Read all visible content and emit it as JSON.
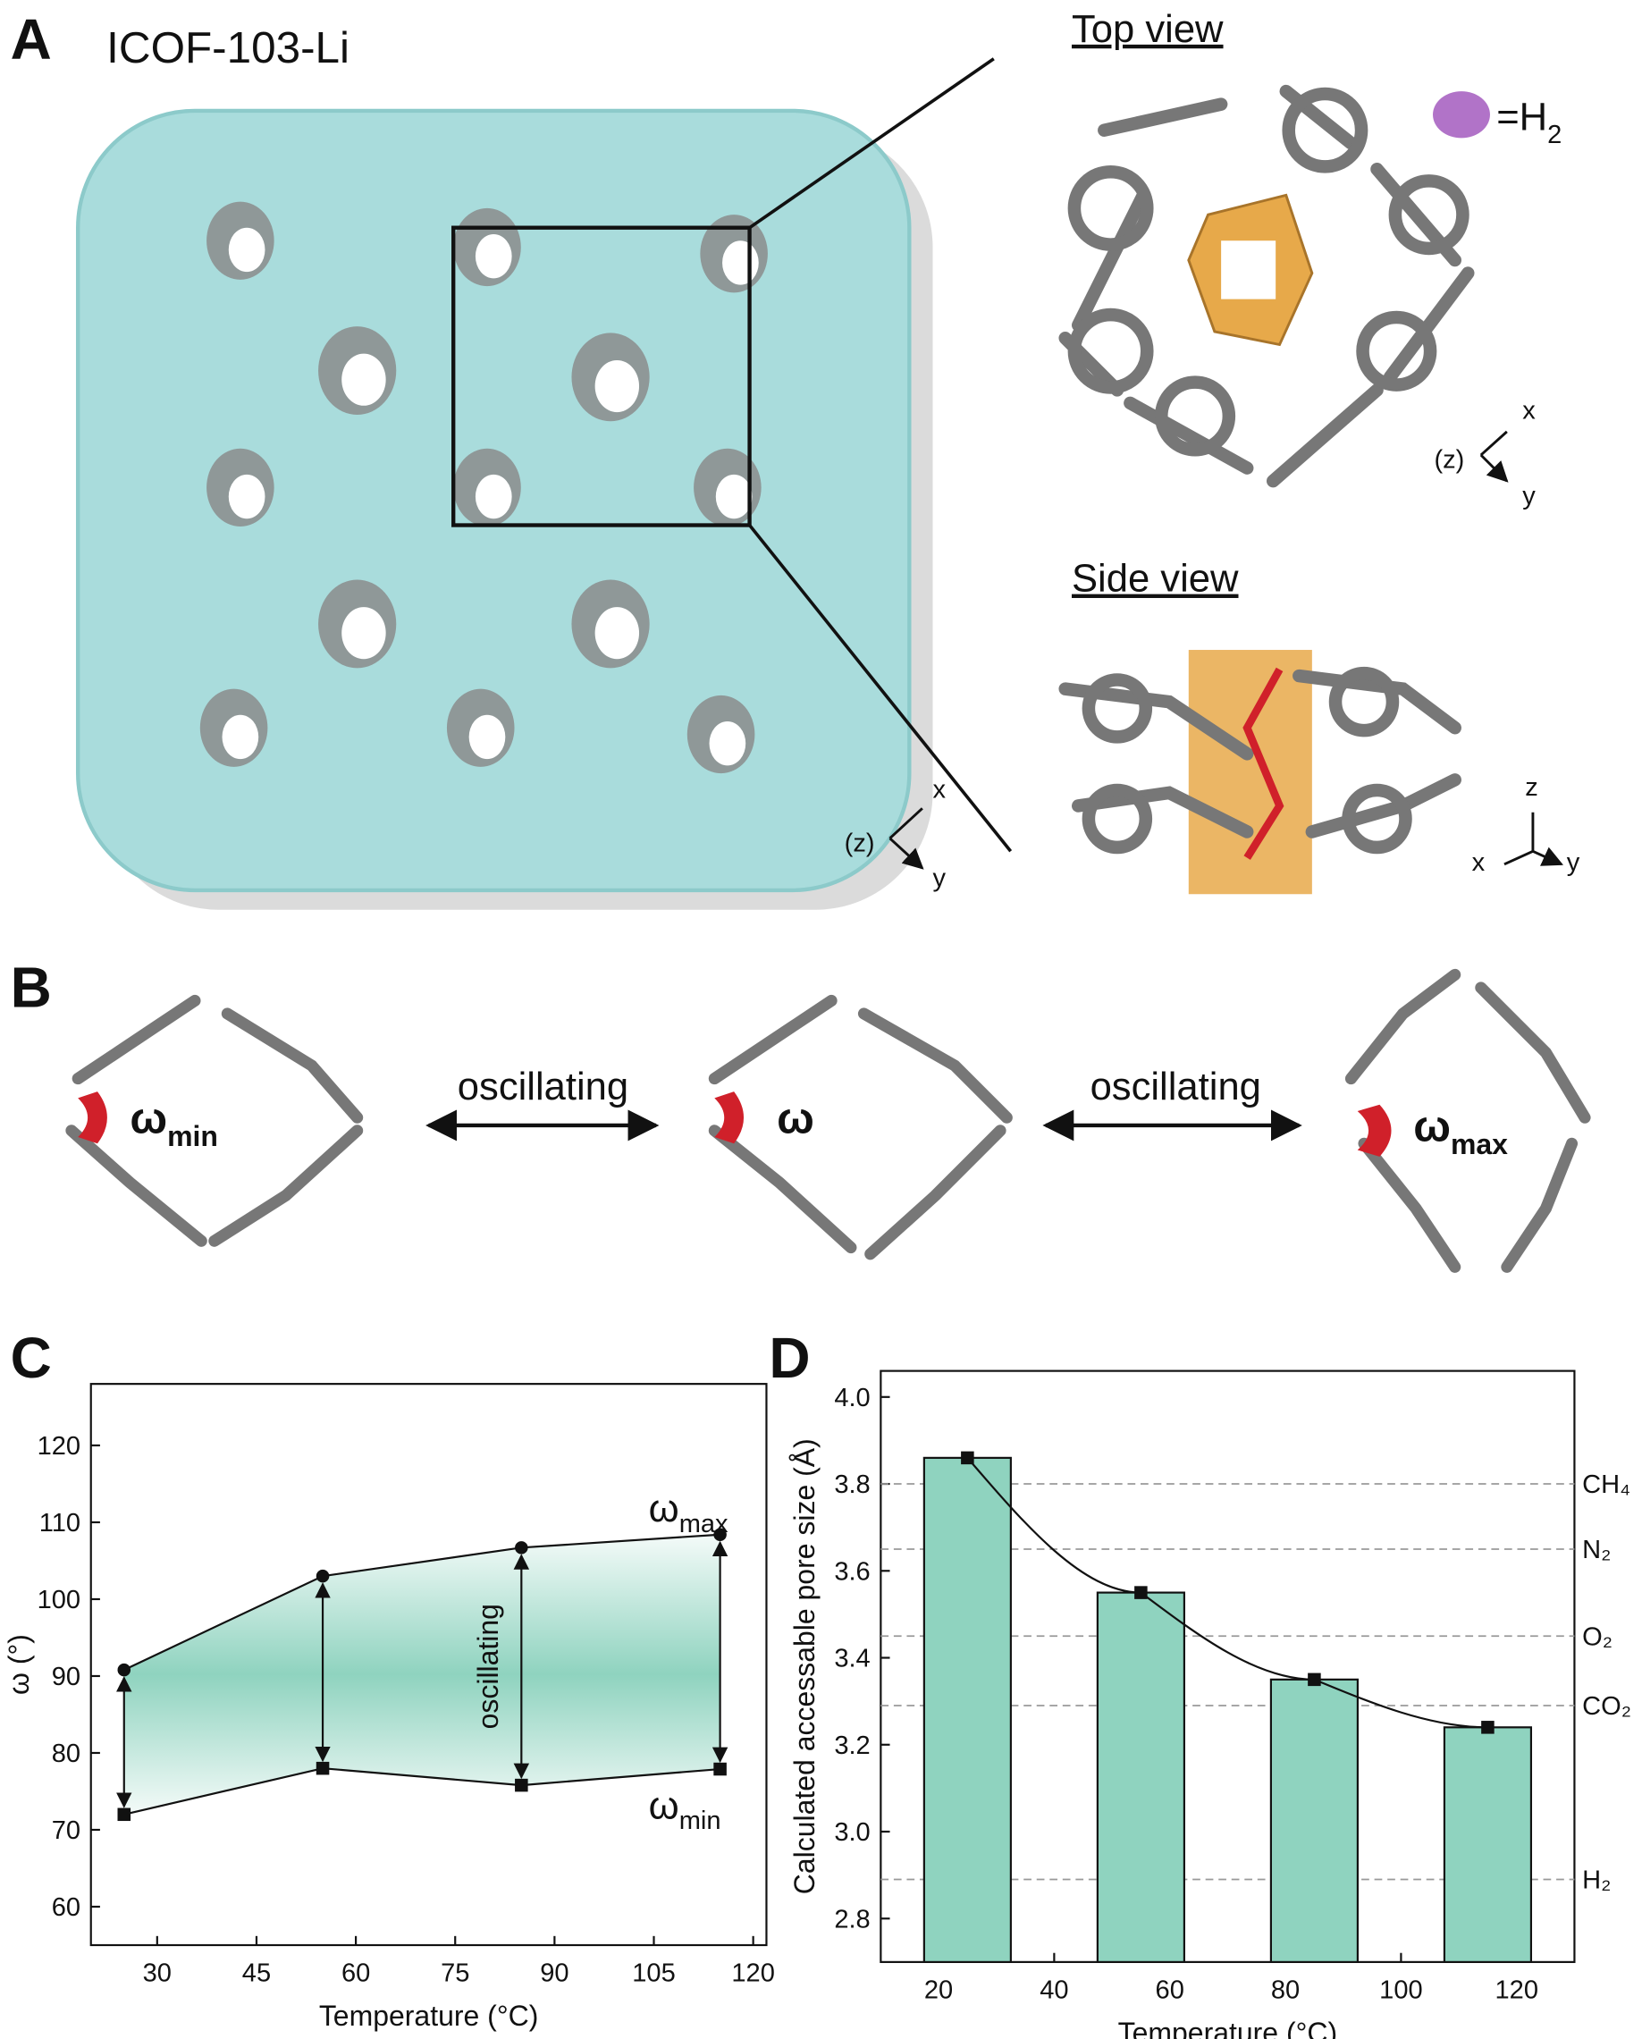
{
  "figure": {
    "panel_a": {
      "label": "A",
      "title": "ICOF-103-Li",
      "top_view": "Top view",
      "side_view": "Side view",
      "h2_key": {
        "text": "=H",
        "sub": "2"
      },
      "axes_main": {
        "z": "(z)",
        "x": "x",
        "y": "y"
      },
      "axes_top": {
        "z": "(z)",
        "x": "x",
        "y": "y"
      },
      "axes_side": {
        "z": "z",
        "x": "x",
        "y": "y"
      }
    },
    "panel_b": {
      "label": "B",
      "arrow_left": "oscillating",
      "arrow_right": "oscillating",
      "omega_min": {
        "text": "ω",
        "sub": "min"
      },
      "omega": "ω",
      "omega_max": {
        "text": "ω",
        "sub": "max"
      }
    },
    "panel_c_label": "C",
    "panel_d_label": "D"
  },
  "chart_data": [
    {
      "type": "band",
      "annotation": "oscillating",
      "x_label": "Temperature (°C)",
      "y_label": "ω (°)",
      "x": [
        25,
        55,
        85,
        115
      ],
      "series": [
        {
          "name": "ω",
          "name_sub": "max",
          "color": "#111111",
          "marker": "circle",
          "values": [
            90.8,
            103,
            106.7,
            108.4
          ]
        },
        {
          "name": "ω",
          "name_sub": "min",
          "color": "#111111",
          "marker": "square",
          "values": [
            72,
            78,
            75.8,
            77.9
          ]
        }
      ],
      "band_color": "#8fd3bf",
      "xlim": [
        20,
        122
      ],
      "xticks": [
        30,
        45,
        60,
        75,
        90,
        105,
        120
      ],
      "ylim": [
        55,
        128
      ],
      "yticks": [
        60,
        70,
        80,
        90,
        100,
        110,
        120
      ]
    },
    {
      "type": "bar",
      "x_label": "Temperature (°C)",
      "y_label": "Calculated accessable pore size (Å)",
      "x": [
        25,
        55,
        85,
        115
      ],
      "values": [
        3.86,
        3.55,
        3.35,
        3.24
      ],
      "color": "#8fd3bf",
      "xlim": [
        10,
        130
      ],
      "xticks": [
        20,
        40,
        60,
        80,
        100,
        120
      ],
      "ylim": [
        2.7,
        4.06
      ],
      "yticks": [
        2.8,
        {
          "value": 3,
          "label": "3.0"
        },
        3.2,
        3.4,
        3.6,
        3.8,
        {
          "value": 4,
          "label": "4.0"
        }
      ],
      "reference_lines": [
        {
          "value": 3.8,
          "label": "CH₄"
        },
        {
          "value": 3.65,
          "label": "N₂"
        },
        {
          "value": 3.45,
          "label": "O₂"
        },
        {
          "value": 3.29,
          "label": "CO₂"
        },
        {
          "value": 2.89,
          "label": "H₂"
        }
      ]
    }
  ]
}
